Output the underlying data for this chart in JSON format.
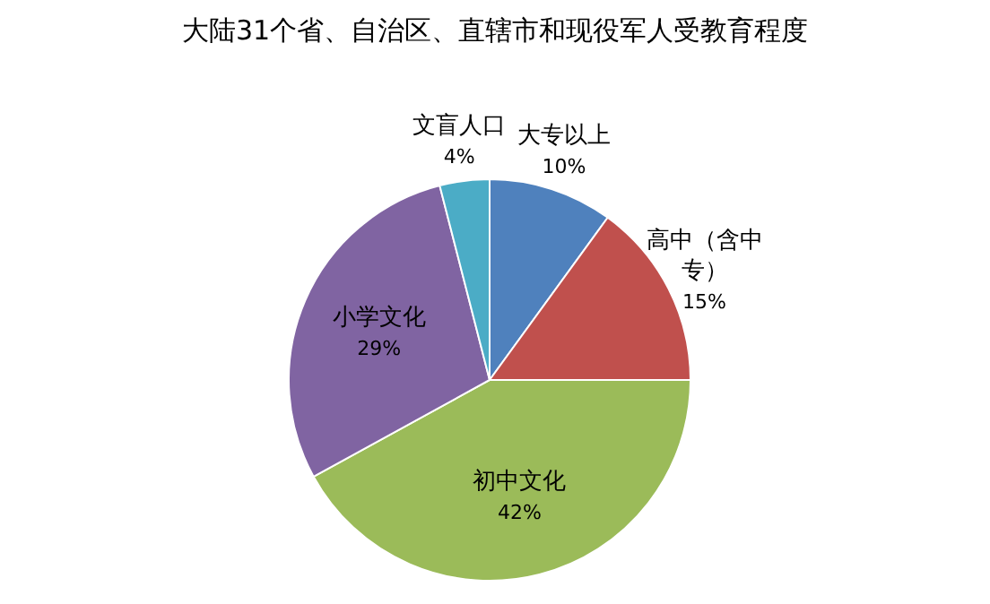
{
  "chart_data": {
    "type": "pie",
    "title": "大陆31个省、自治区、直辖市和现役军人受教育程度",
    "categories": [
      "大专以上",
      "高中（含中专）",
      "初中文化",
      "小学文化",
      "文盲人口"
    ],
    "values": [
      10,
      15,
      42,
      29,
      4
    ],
    "value_labels": [
      "10%",
      "15%",
      "42%",
      "29%",
      "4%"
    ],
    "colors": [
      "#4f81bd",
      "#c0504d",
      "#9bbb59",
      "#8064a2",
      "#4bacc6"
    ],
    "legend": false
  }
}
